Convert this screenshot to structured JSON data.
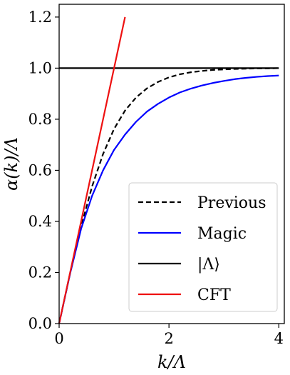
{
  "chart_data": {
    "type": "line",
    "xlabel": "k/Λ",
    "ylabel": "α(k)/Λ",
    "xlim": [
      0,
      4.1
    ],
    "ylim": [
      0,
      1.25
    ],
    "x_ticks": [
      0,
      2,
      4
    ],
    "x_tick_labels": [
      "0",
      "2",
      "4"
    ],
    "y_ticks": [
      0.0,
      0.2,
      0.4,
      0.6,
      0.8,
      1.0,
      1.2
    ],
    "y_tick_labels": [
      "0.0",
      "0.2",
      "0.4",
      "0.6",
      "0.8",
      "1.0",
      "1.2"
    ],
    "grid": false,
    "legend_position": "lower-right",
    "series": [
      {
        "name": "Previous",
        "color": "#000000",
        "dash": "dashed",
        "x": [
          0,
          0.2,
          0.4,
          0.6,
          0.8,
          1.0,
          1.2,
          1.4,
          1.6,
          1.8,
          2.0,
          2.2,
          2.4,
          2.6,
          2.8,
          3.0,
          3.2,
          3.4,
          3.6,
          3.8,
          4.0
        ],
        "y": [
          0,
          0.197,
          0.38,
          0.537,
          0.664,
          0.762,
          0.834,
          0.885,
          0.921,
          0.946,
          0.964,
          0.976,
          0.984,
          0.989,
          0.993,
          0.995,
          0.997,
          0.998,
          0.999,
          0.999,
          1.0
        ]
      },
      {
        "name": "Magic",
        "color": "#0000ff",
        "dash": "solid",
        "x": [
          0,
          0.2,
          0.4,
          0.6,
          0.8,
          1.0,
          1.2,
          1.4,
          1.6,
          1.8,
          2.0,
          2.2,
          2.4,
          2.6,
          2.8,
          3.0,
          3.2,
          3.4,
          3.6,
          3.8,
          4.0
        ],
        "y": [
          0,
          0.196,
          0.371,
          0.5,
          0.6,
          0.68,
          0.74,
          0.79,
          0.83,
          0.86,
          0.885,
          0.905,
          0.92,
          0.932,
          0.942,
          0.95,
          0.957,
          0.962,
          0.966,
          0.969,
          0.971
        ]
      },
      {
        "name": "|Λ⟩",
        "color": "#000000",
        "dash": "solid",
        "x": [
          0,
          4.0
        ],
        "y": [
          1.0,
          1.0
        ]
      },
      {
        "name": "CFT",
        "color": "#ee1111",
        "dash": "solid",
        "x": [
          0,
          1.2
        ],
        "y": [
          0,
          1.2
        ]
      }
    ]
  }
}
